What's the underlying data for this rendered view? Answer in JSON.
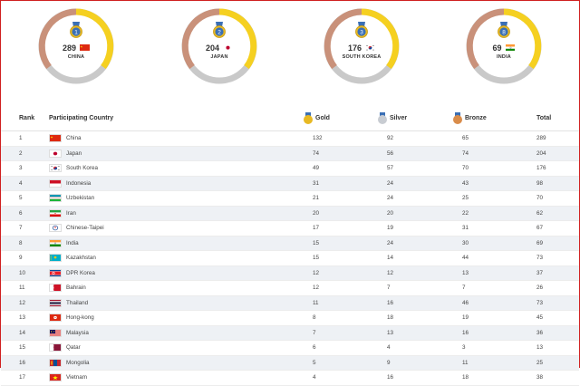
{
  "summary": [
    {
      "rank_badge": "1",
      "total": "289",
      "country": "CHINA",
      "flag": "china-flag",
      "color": "#f5d020"
    },
    {
      "rank_badge": "2",
      "total": "204",
      "country": "JAPAN",
      "flag": "japan-flag",
      "color": "#f5d020"
    },
    {
      "rank_badge": "3",
      "total": "176",
      "country": "SOUTH KOREA",
      "flag": "south-korea-flag",
      "color": "#f5d020"
    },
    {
      "rank_badge": "8",
      "total": "69",
      "country": "INDIA",
      "flag": "india-flag",
      "color": "#f5d020"
    }
  ],
  "table": {
    "headers": {
      "rank": "Rank",
      "country": "Participating Country",
      "gold": "Gold",
      "silver": "Silver",
      "bronze": "Bronze",
      "total": "Total"
    },
    "rows": [
      {
        "rank": "1",
        "country": "China",
        "flag": "china-flag",
        "gold": "132",
        "silver": "92",
        "bronze": "65",
        "total": "289"
      },
      {
        "rank": "2",
        "country": "Japan",
        "flag": "japan-flag",
        "gold": "74",
        "silver": "56",
        "bronze": "74",
        "total": "204"
      },
      {
        "rank": "3",
        "country": "South Korea",
        "flag": "south-korea-flag",
        "gold": "49",
        "silver": "57",
        "bronze": "70",
        "total": "176"
      },
      {
        "rank": "4",
        "country": "Indonesia",
        "flag": "indonesia-flag",
        "gold": "31",
        "silver": "24",
        "bronze": "43",
        "total": "98"
      },
      {
        "rank": "5",
        "country": "Uzbekistan",
        "flag": "uzbekistan-flag",
        "gold": "21",
        "silver": "24",
        "bronze": "25",
        "total": "70"
      },
      {
        "rank": "6",
        "country": "Iran",
        "flag": "iran-flag",
        "gold": "20",
        "silver": "20",
        "bronze": "22",
        "total": "62"
      },
      {
        "rank": "7",
        "country": "Chinese-Taipei",
        "flag": "chinese-taipei-flag",
        "gold": "17",
        "silver": "19",
        "bronze": "31",
        "total": "67"
      },
      {
        "rank": "8",
        "country": "India",
        "flag": "india-flag",
        "gold": "15",
        "silver": "24",
        "bronze": "30",
        "total": "69"
      },
      {
        "rank": "9",
        "country": "Kazakhstan",
        "flag": "kazakhstan-flag",
        "gold": "15",
        "silver": "14",
        "bronze": "44",
        "total": "73"
      },
      {
        "rank": "10",
        "country": "DPR Korea",
        "flag": "dpr-korea-flag",
        "gold": "12",
        "silver": "12",
        "bronze": "13",
        "total": "37"
      },
      {
        "rank": "11",
        "country": "Bahrain",
        "flag": "bahrain-flag",
        "gold": "12",
        "silver": "7",
        "bronze": "7",
        "total": "26"
      },
      {
        "rank": "12",
        "country": "Thailand",
        "flag": "thailand-flag",
        "gold": "11",
        "silver": "16",
        "bronze": "46",
        "total": "73"
      },
      {
        "rank": "13",
        "country": "Hong-kong",
        "flag": "hong-kong-flag",
        "gold": "8",
        "silver": "18",
        "bronze": "19",
        "total": "45"
      },
      {
        "rank": "14",
        "country": "Malaysia",
        "flag": "malaysia-flag",
        "gold": "7",
        "silver": "13",
        "bronze": "16",
        "total": "36"
      },
      {
        "rank": "15",
        "country": "Qatar",
        "flag": "qatar-flag",
        "gold": "6",
        "silver": "4",
        "bronze": "3",
        "total": "13"
      },
      {
        "rank": "16",
        "country": "Mongolia",
        "flag": "mongolia-flag",
        "gold": "5",
        "silver": "9",
        "bronze": "11",
        "total": "25"
      },
      {
        "rank": "17",
        "country": "Vietnam",
        "flag": "vietnam-flag",
        "gold": "4",
        "silver": "16",
        "bronze": "18",
        "total": "38"
      }
    ]
  },
  "colors": {
    "gold": "#e8b923",
    "silver": "#c8ccd2",
    "bronze": "#d98c4a",
    "ring_track": "#c9c9c9",
    "ring_copper": "#c9917a",
    "row_alt": "#eef1f5"
  }
}
